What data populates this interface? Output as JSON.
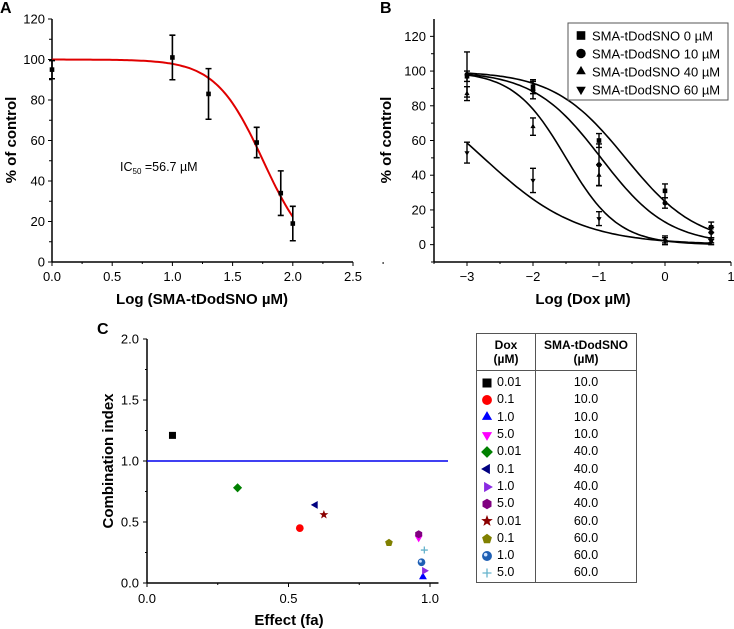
{
  "chart_data": [
    {
      "panel": "A",
      "type": "line",
      "xlabel": "Log (SMA-tDodSNO µM)",
      "ylabel": "% of control",
      "xlim": [
        0,
        2.5
      ],
      "ylim": [
        0,
        120
      ],
      "xticks": [
        "0.0",
        "0.5",
        "1.0",
        "1.5",
        "2.0",
        "2.5"
      ],
      "yticks": [
        "0",
        "20",
        "40",
        "60",
        "80",
        "100",
        "120"
      ],
      "annotation": {
        "prefix": "IC",
        "sub": "50",
        "suffix": " =56.7 µM"
      },
      "curve_color": "#e00000",
      "fit": {
        "top": 100,
        "log_ic50": 1.754,
        "hill": 2.2,
        "x_range": [
          0,
          2
        ]
      },
      "points": [
        {
          "x": 0,
          "y": 95,
          "err": 4.5
        },
        {
          "x": 1.0,
          "y": 101,
          "err": 11
        },
        {
          "x": 1.3,
          "y": 83,
          "err": 12.5
        },
        {
          "x": 1.7,
          "y": 59,
          "err": 7.5
        },
        {
          "x": 1.9,
          "y": 34,
          "err": 11
        },
        {
          "x": 2.0,
          "y": 19,
          "err": 8.5
        }
      ]
    },
    {
      "panel": "B",
      "type": "line",
      "xlabel": "Log (Dox µM)",
      "ylabel": "% of control",
      "xlim": [
        -3.5,
        1
      ],
      "ylim": [
        -10,
        130
      ],
      "xticks": [
        "−3",
        "−2",
        "−1",
        "0",
        "1"
      ],
      "yticks": [
        "0",
        "20",
        "40",
        "60",
        "80",
        "100",
        "120"
      ],
      "legend_position": "top-right",
      "series": [
        {
          "name": "SMA-tDodSNO 0 µM",
          "marker": "square",
          "fit": {
            "log_ic50": -0.6,
            "hill": 0.8
          },
          "points": [
            [
              -3,
              97,
              3
            ],
            [
              -2,
              91,
              4
            ],
            [
              -1,
              60,
              4
            ],
            [
              0,
              31,
              4
            ],
            [
              0.7,
              10,
              3
            ]
          ]
        },
        {
          "name": "SMA-tDodSNO 10 µM",
          "marker": "circle",
          "fit": {
            "log_ic50": -0.97,
            "hill": 0.85
          },
          "points": [
            [
              -3,
              98,
              13
            ],
            [
              -2,
              89,
              5
            ],
            [
              -1,
              46,
              12
            ],
            [
              0,
              24,
              3
            ],
            [
              0.7,
              7,
              3
            ]
          ]
        },
        {
          "name": "SMA-tDodSNO 40 µM",
          "marker": "triangle-up",
          "fit": {
            "log_ic50": -1.5,
            "hill": 1.1
          },
          "points": [
            [
              -3,
              87,
              4
            ],
            [
              -2,
              68,
              5
            ],
            [
              -1,
              40,
              6
            ],
            [
              0,
              3,
              2
            ],
            [
              0.7,
              2,
              2
            ]
          ]
        },
        {
          "name": "SMA-tDodSNO 60 µM",
          "marker": "triangle-down",
          "fit": {
            "log_ic50": -2.75,
            "hill": 0.6
          },
          "points": [
            [
              -3,
              53,
              6
            ],
            [
              -2,
              37,
              7
            ],
            [
              -1,
              15,
              4
            ],
            [
              0,
              2,
              2
            ],
            [
              0.7,
              2,
              1
            ]
          ]
        }
      ]
    },
    {
      "panel": "C",
      "type": "scatter",
      "xlabel": "Effect (fa)",
      "ylabel": "Combination index",
      "xlim": [
        0,
        1.05
      ],
      "ylim": [
        0,
        2.0
      ],
      "xticks": [
        "0.0",
        "0.5",
        "1.0"
      ],
      "yticks": [
        "0.0",
        "0.5",
        "1.0",
        "1.5",
        "2.0"
      ],
      "reference_line": {
        "y": 1.0,
        "color": "#0000ee"
      },
      "table_headers": [
        [
          "Dox",
          "(µM)"
        ],
        [
          "SMA-tDodSNO",
          "(µM)"
        ]
      ],
      "points": [
        {
          "dox": "0.01",
          "sma": "10.0",
          "marker": "square",
          "color": "#000000",
          "fa": 0.09,
          "ci": 1.21
        },
        {
          "dox": "0.1",
          "sma": "10.0",
          "marker": "circle",
          "color": "#ff0000",
          "fa": 0.54,
          "ci": 0.45
        },
        {
          "dox": "1.0",
          "sma": "10.0",
          "marker": "triangle-up",
          "color": "#0000ff",
          "fa": 0.975,
          "ci": 0.05
        },
        {
          "dox": "5.0",
          "sma": "10.0",
          "marker": "triangle-down",
          "color": "#ff00ff",
          "fa": 0.96,
          "ci": 0.37
        },
        {
          "dox": "0.01",
          "sma": "40.0",
          "marker": "diamond",
          "color": "#008000",
          "fa": 0.32,
          "ci": 0.78
        },
        {
          "dox": "0.1",
          "sma": "40.0",
          "marker": "triangle-left",
          "color": "#000080",
          "fa": 0.595,
          "ci": 0.64
        },
        {
          "dox": "1.0",
          "sma": "40.0",
          "marker": "triangle-right",
          "color": "#8a2be2",
          "fa": 0.98,
          "ci": 0.1
        },
        {
          "dox": "5.0",
          "sma": "40.0",
          "marker": "hexagon",
          "color": "#800080",
          "fa": 0.96,
          "ci": 0.4
        },
        {
          "dox": "0.01",
          "sma": "60.0",
          "marker": "star",
          "color": "#8b0000",
          "fa": 0.625,
          "ci": 0.56
        },
        {
          "dox": "0.1",
          "sma": "60.0",
          "marker": "pentagon",
          "color": "#808000",
          "fa": 0.855,
          "ci": 0.33
        },
        {
          "dox": "1.0",
          "sma": "60.0",
          "marker": "sphere",
          "color": "#1e5fb4",
          "fa": 0.97,
          "ci": 0.17
        },
        {
          "dox": "5.0",
          "sma": "60.0",
          "marker": "plus",
          "color": "#66b3cc",
          "fa": 0.98,
          "ci": 0.27
        }
      ]
    }
  ],
  "panel_labels": [
    "A",
    "B",
    "C"
  ]
}
